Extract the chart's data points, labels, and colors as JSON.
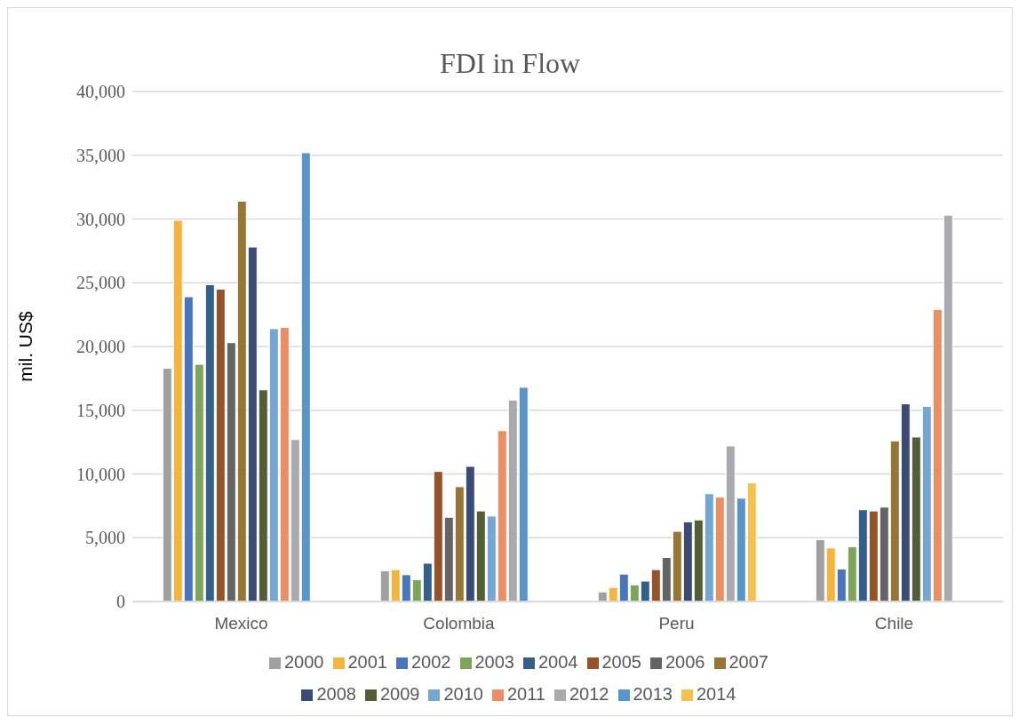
{
  "chart_data": {
    "type": "bar",
    "title": "FDI in Flow",
    "ylabel": "mil. US$",
    "categories": [
      "Mexico",
      "Colombia",
      "Peru",
      "Chile"
    ],
    "series": [
      {
        "name": "2000",
        "color": "#a0a0a2",
        "values": [
          18300,
          2400,
          750,
          4850
        ]
      },
      {
        "name": "2001",
        "color": "#f4b53f",
        "values": [
          29900,
          2500,
          1100,
          4200
        ]
      },
      {
        "name": "2002",
        "color": "#4a74bb",
        "values": [
          23900,
          2100,
          2150,
          2550
        ]
      },
      {
        "name": "2003",
        "color": "#7ea459",
        "values": [
          18600,
          1700,
          1300,
          4300
        ]
      },
      {
        "name": "2004",
        "color": "#355f8b",
        "values": [
          24850,
          3000,
          1600,
          7200
        ]
      },
      {
        "name": "2005",
        "color": "#94532a",
        "values": [
          24500,
          10200,
          2500,
          7100
        ]
      },
      {
        "name": "2006",
        "color": "#646466",
        "values": [
          20300,
          6600,
          3450,
          7400
        ]
      },
      {
        "name": "2007",
        "color": "#967634",
        "values": [
          31400,
          9000,
          5500,
          12600
        ]
      },
      {
        "name": "2008",
        "color": "#3c4b74",
        "values": [
          27800,
          10600,
          6250,
          15500
        ]
      },
      {
        "name": "2009",
        "color": "#535e36",
        "values": [
          16600,
          7100,
          6400,
          12900
        ]
      },
      {
        "name": "2010",
        "color": "#75a6d1",
        "values": [
          21400,
          6700,
          8450,
          15300
        ]
      },
      {
        "name": "2011",
        "color": "#ea8e64",
        "values": [
          21500,
          13400,
          8200,
          22900
        ]
      },
      {
        "name": "2012",
        "color": "#aaaaae",
        "values": [
          12700,
          15800,
          12200,
          30300
        ]
      },
      {
        "name": "2013",
        "color": "#5895c9",
        "values": [
          35200,
          16800,
          8100,
          null
        ]
      },
      {
        "name": "2014",
        "color": "#f4c050",
        "values": [
          null,
          null,
          9300,
          null
        ]
      }
    ],
    "ylim": [
      0,
      40000
    ],
    "yticks": [
      0,
      {
        "value": 5000,
        "label": "5,000"
      },
      {
        "value": 10000,
        "label": "10,000"
      },
      {
        "value": 15000,
        "label": "15,000"
      },
      {
        "value": 20000,
        "label": "20,000"
      },
      {
        "value": 25000,
        "label": "25,000"
      },
      {
        "value": 30000,
        "label": "30,000"
      },
      {
        "value": 35000,
        "label": "35,000"
      },
      {
        "value": 40000,
        "label": "40,000"
      }
    ],
    "grid": "y",
    "legend": "bottom"
  }
}
